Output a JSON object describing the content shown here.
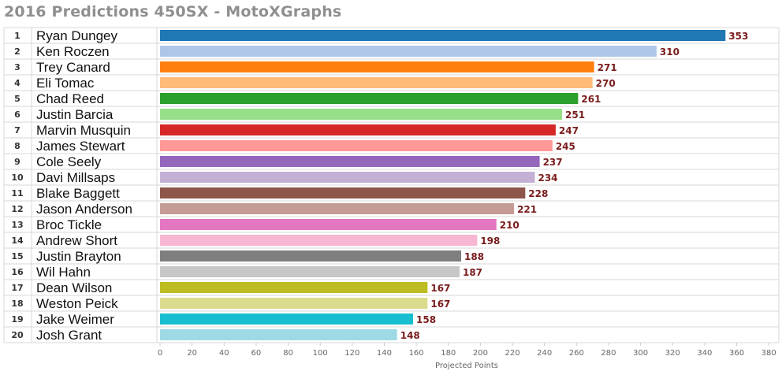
{
  "title": "2016 Predictions 450SX - MotoXGraphs",
  "chart_data": {
    "type": "bar",
    "orientation": "horizontal",
    "title": "2016 Predictions 450SX - MotoXGraphs",
    "xlabel": "Projected Points",
    "ylabel": "",
    "xlim": [
      0,
      390
    ],
    "xticks": [
      0,
      20,
      40,
      60,
      80,
      100,
      120,
      140,
      160,
      180,
      200,
      220,
      240,
      260,
      280,
      300,
      320,
      340,
      360,
      380
    ],
    "grid": false,
    "legend": "none",
    "ranks": [
      "1",
      "2",
      "3",
      "4",
      "5",
      "6",
      "7",
      "8",
      "9",
      "10",
      "11",
      "12",
      "13",
      "14",
      "15",
      "16",
      "17",
      "18",
      "19",
      "20"
    ],
    "categories": [
      "Ryan Dungey",
      "Ken Roczen",
      "Trey Canard",
      "Eli Tomac",
      "Chad Reed",
      "Justin Barcia",
      "Marvin Musquin",
      "James Stewart",
      "Cole Seely",
      "Davi Millsaps",
      "Blake Baggett",
      "Jason Anderson",
      "Broc Tickle",
      "Andrew Short",
      "Justin Brayton",
      "Wil Hahn",
      "Dean Wilson",
      "Weston Peick",
      "Jake Weimer",
      "Josh Grant"
    ],
    "values": [
      353,
      310,
      271,
      270,
      261,
      251,
      247,
      245,
      237,
      234,
      228,
      221,
      210,
      198,
      188,
      187,
      167,
      167,
      158,
      148
    ],
    "colors": [
      "#1f77b4",
      "#aec7e8",
      "#ff7f0e",
      "#ffbb78",
      "#2ca02c",
      "#98df8a",
      "#d62728",
      "#ff9896",
      "#9467bd",
      "#c5b0d5",
      "#8c564b",
      "#c49c94",
      "#e377c2",
      "#f7b6d2",
      "#7f7f7f",
      "#c7c7c7",
      "#bcbd22",
      "#dbdb8d",
      "#17becf",
      "#9edae5"
    ],
    "label_color": "#7a1c1c"
  }
}
